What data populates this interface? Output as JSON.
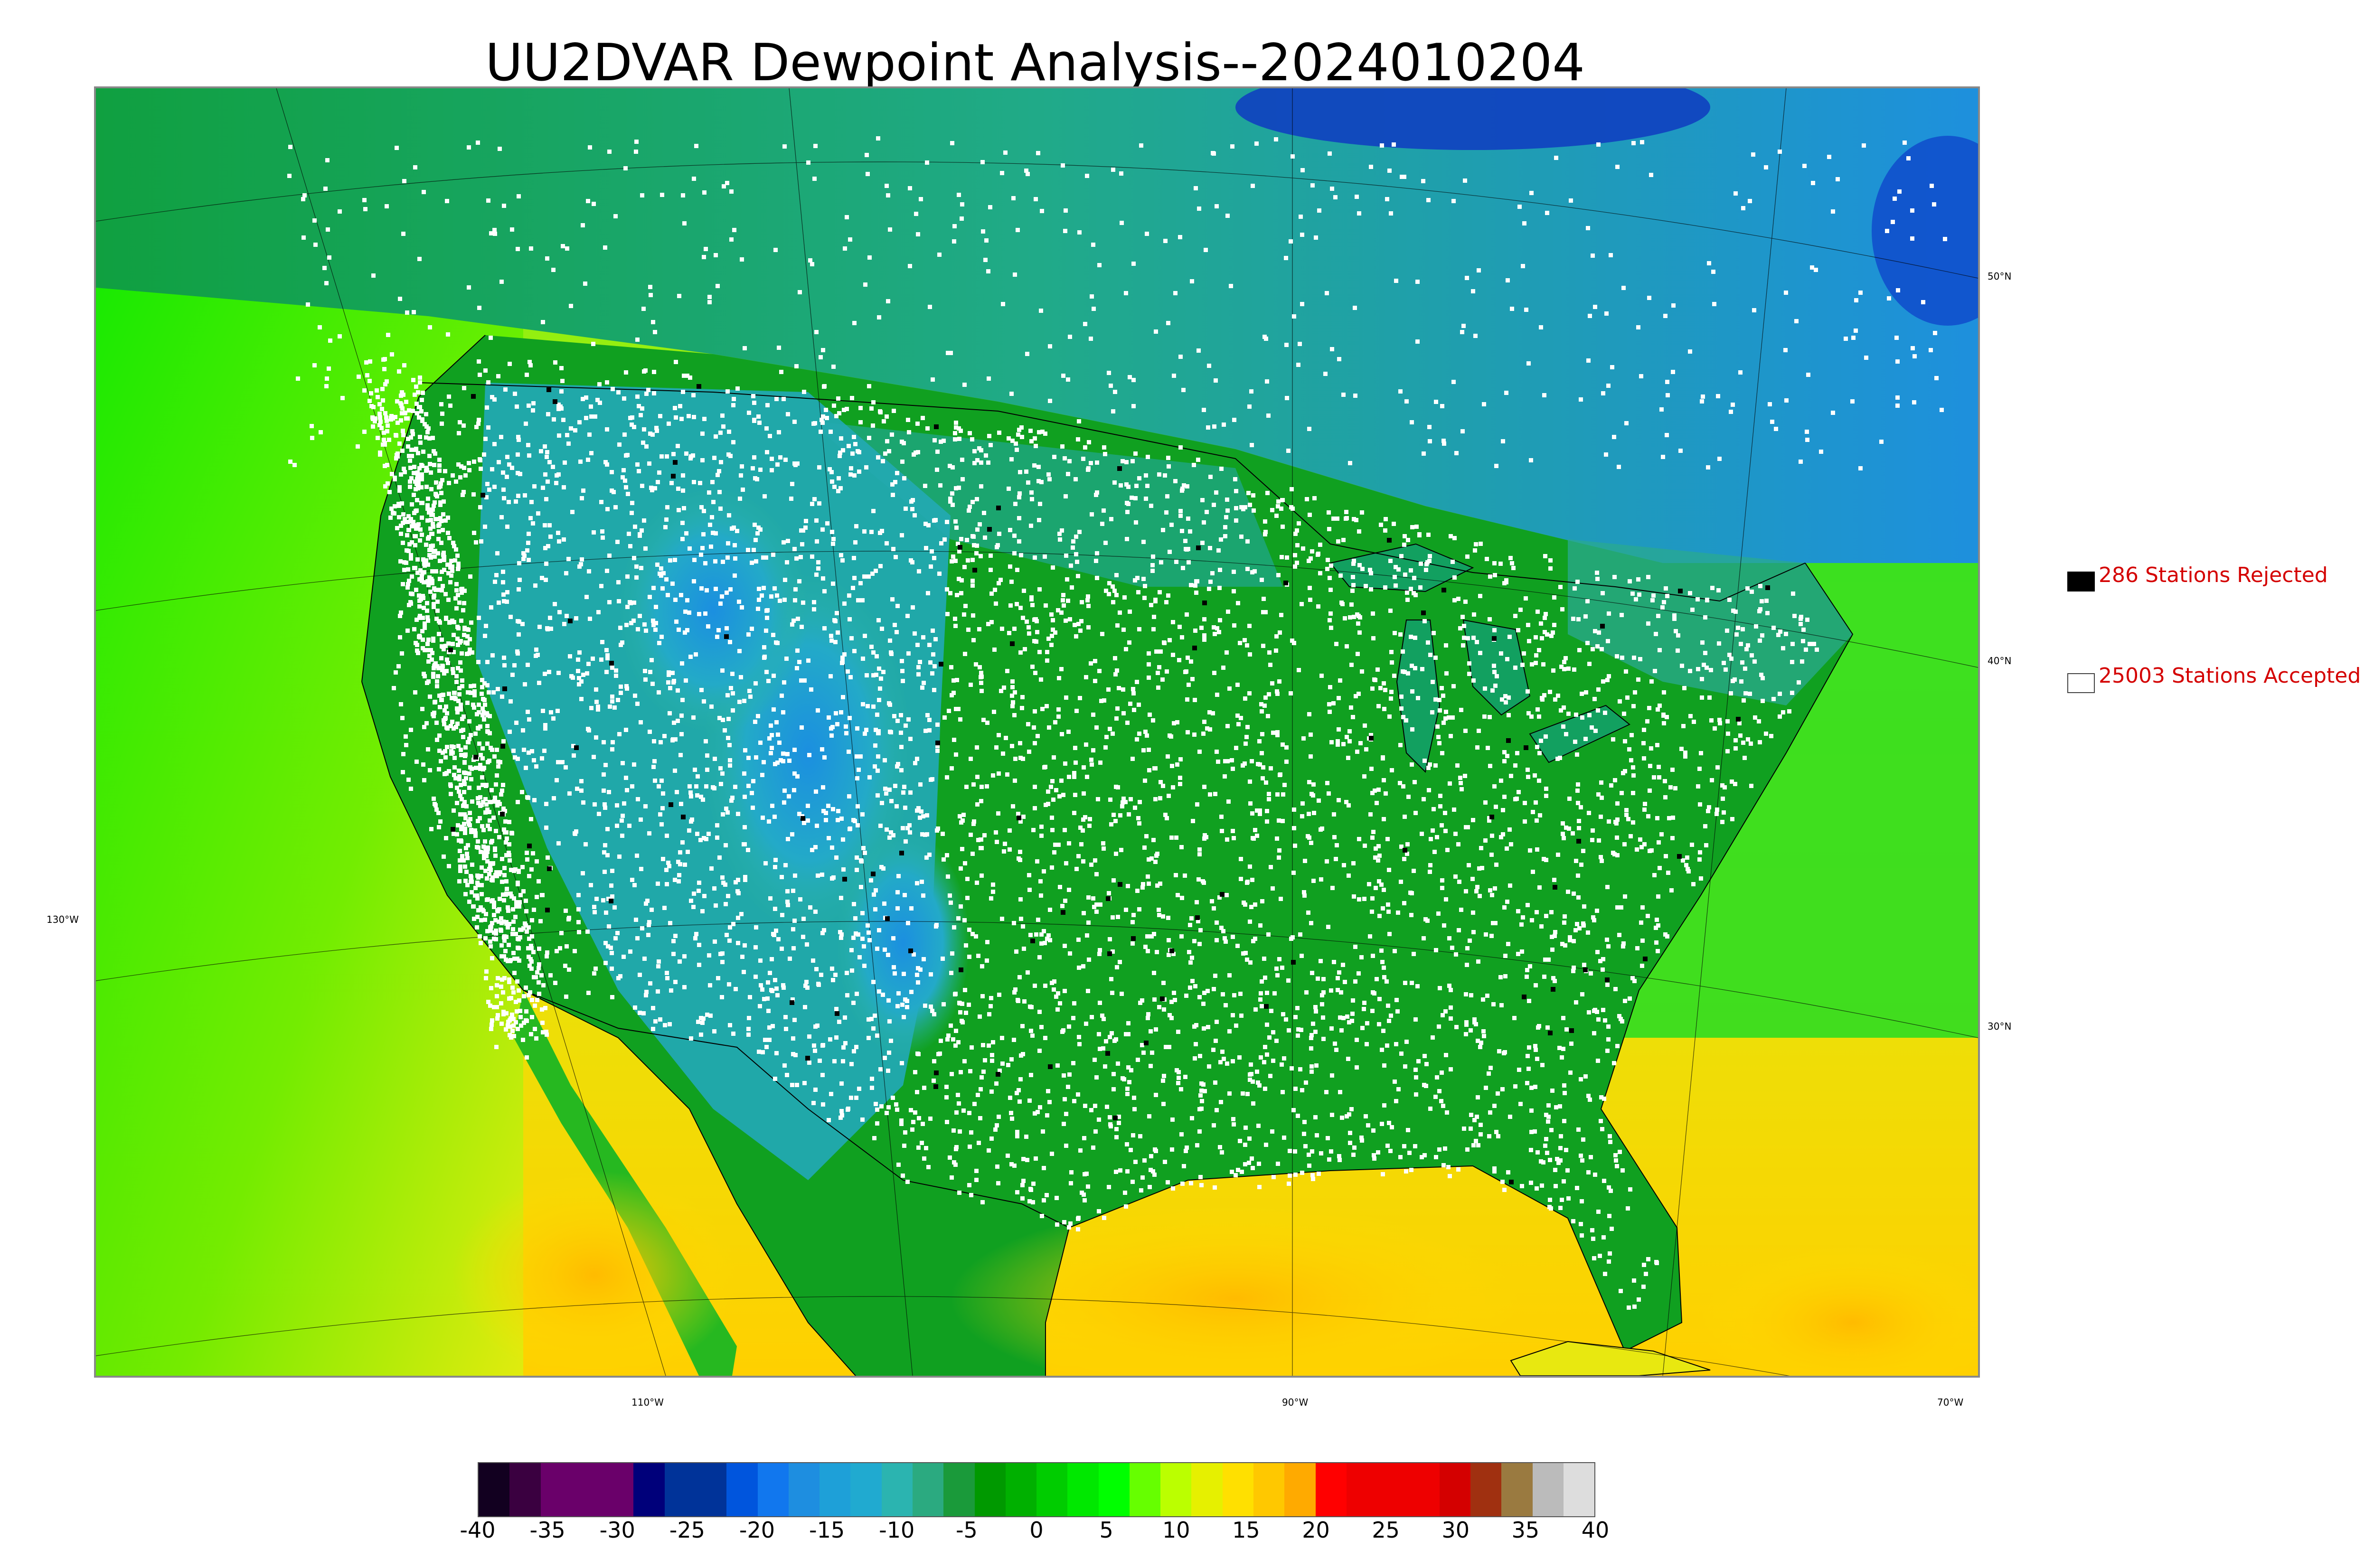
{
  "title": "UU2DVAR Dewpoint Analysis--2024010204",
  "map": {
    "latitude_labels": [
      "50°N",
      "40°N",
      "30°N"
    ],
    "longitude_labels": [
      "130°W",
      "110°W",
      "90°W",
      "70°W"
    ]
  },
  "legend": {
    "rejected": {
      "label": "286 Stations Rejected",
      "swatch_color": "#000000"
    },
    "accepted": {
      "label": "25003 Stations Accepted",
      "swatch_color": "#ffffff"
    }
  },
  "colorbar": {
    "ticks": [
      "-40",
      "-35",
      "-30",
      "-25",
      "-20",
      "-15",
      "-10",
      "-5",
      "0",
      "5",
      "10",
      "15",
      "20",
      "25",
      "30",
      "35",
      "40"
    ],
    "colors": [
      "#120020",
      "#3a0040",
      "#6a006a",
      "#6a006a",
      "#6a006a",
      "#00007a",
      "#003399",
      "#003399",
      "#0055dd",
      "#1177ee",
      "#1e8ee0",
      "#1ea0d8",
      "#20aad0",
      "#2bb4b0",
      "#2baa80",
      "#1a9a3a",
      "#009900",
      "#00b000",
      "#00cc00",
      "#00e800",
      "#00ff00",
      "#66ff00",
      "#bbff00",
      "#e6f000",
      "#ffe000",
      "#ffc800",
      "#ffaa00",
      "#ff0000",
      "#ee0000",
      "#ee0000",
      "#ee0000",
      "#d40000",
      "#a03010",
      "#9a7a40",
      "#bbbbbb",
      "#dddddd"
    ]
  },
  "colors": {
    "ocean_south": "#e8ee10",
    "ocean_west": "#00e800",
    "land_green": "#10a010",
    "cold_blue": "#1ea0d0",
    "station_accepted": "#ffffff",
    "station_rejected": "#000000",
    "legend_text": "#d40000"
  }
}
